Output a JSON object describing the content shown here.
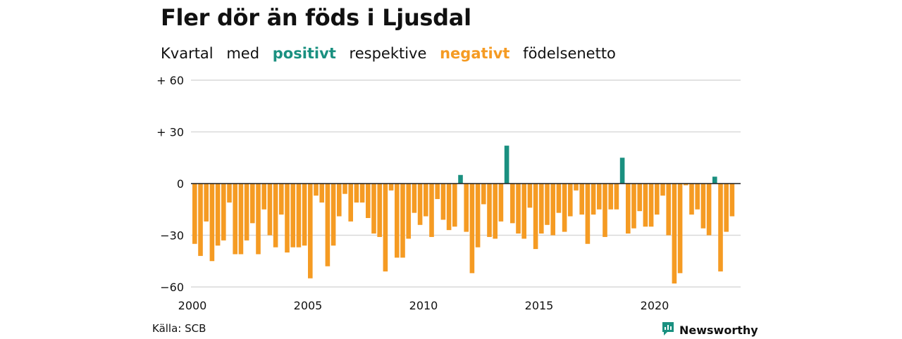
{
  "title": "Fler dör än föds i Ljusdal",
  "subtitle": {
    "prefix": "Kvartal",
    "med": "med",
    "positive_word": "positivt",
    "middle": "respektive",
    "negative_word": "negativt",
    "suffix": "födelsenetto"
  },
  "colors": {
    "positive": "#1a9080",
    "negative": "#f59b23",
    "grid": "#d9d9d9",
    "text": "#111111"
  },
  "footer": {
    "source": "Källa: SCB",
    "brand": "Newsworthy",
    "brand_icon": "newsworthy-logo-icon"
  },
  "chart_data": {
    "type": "bar",
    "title": "Fler dör än föds i Ljusdal",
    "subtitle": "Kvartal med positivt respektive negativt födelsenetto",
    "xlabel": "",
    "ylabel": "",
    "ylim": [
      -60,
      60
    ],
    "grid": true,
    "y_ticks": [
      {
        "value": 60,
        "label": "+ 60"
      },
      {
        "value": 30,
        "label": "+ 30"
      },
      {
        "value": 0,
        "label": "0"
      },
      {
        "value": -30,
        "label": "−30"
      },
      {
        "value": -60,
        "label": "−60"
      }
    ],
    "x_ticks": [
      "2000",
      "2005",
      "2010",
      "2015",
      "2020"
    ],
    "first_period": "2000 Q1",
    "frequency": "quarterly",
    "values": [
      -35,
      -42,
      -22,
      -45,
      -36,
      -33,
      -11,
      -41,
      -41,
      -33,
      -23,
      -41,
      -15,
      -30,
      -37,
      -18,
      -40,
      -37,
      -37,
      -36,
      -55,
      -7,
      -11,
      -48,
      -36,
      -19,
      -6,
      -22,
      -11,
      -11,
      -20,
      -29,
      -31,
      -51,
      -4,
      -43,
      -43,
      -32,
      -17,
      -24,
      -19,
      -31,
      -9,
      -21,
      -27,
      -25,
      5,
      -28,
      -52,
      -37,
      -12,
      -31,
      -32,
      -22,
      22,
      -23,
      -29,
      -32,
      -14,
      -38,
      -29,
      -24,
      -30,
      -17,
      -28,
      -19,
      -4,
      -18,
      -35,
      -18,
      -15,
      -31,
      -15,
      -15,
      15,
      -29,
      -26,
      -16,
      -25,
      -25,
      -18,
      -7,
      -30,
      -58,
      -52,
      -1,
      -18,
      -15,
      -26,
      -30,
      4,
      -51,
      -28,
      -19
    ]
  }
}
